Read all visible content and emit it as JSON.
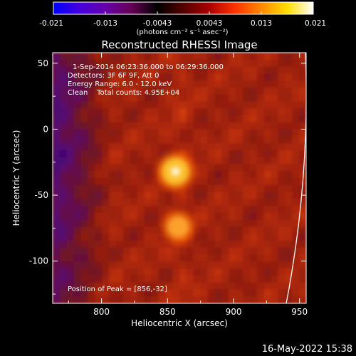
{
  "chart_data": {
    "type": "heatmap",
    "title": "Reconstructed RHESSI Image",
    "xlabel": "Heliocentric X (arcsec)",
    "ylabel": "Heliocentric Y (arcsec)",
    "xlim": [
      763,
      955
    ],
    "ylim": [
      -132,
      58
    ],
    "x_ticks": [
      800,
      850,
      900,
      950
    ],
    "y_ticks": [
      50,
      0,
      -50,
      -100
    ],
    "annotations": {
      "time": "1-Sep-2014 06:23:36.000 to 06:29:36.000",
      "detectors": "Detectors: 3F 6F 9F, Att 0",
      "energy": "Energy Range: 6.0 - 12.0 keV",
      "clean": "Clean    Total counts: 4.95E+04",
      "peak": "Position of Peak = [856,-32]"
    },
    "sources": [
      {
        "x": 856,
        "y": -32,
        "relative_intensity": 1.0
      },
      {
        "x": 858,
        "y": -74,
        "relative_intensity": 0.7
      }
    ],
    "limb_x_range": [
      941,
      955
    ],
    "colorbar": {
      "ticks": [
        "-0.021",
        "-0.013",
        "-0.0043",
        "0.0043",
        "0.013",
        "0.021"
      ],
      "min": -0.021,
      "max": 0.021,
      "unit": "(photons cm⁻² s⁻¹ asec⁻²)",
      "colormap": [
        "#0000ff",
        "#4400dd",
        "#6600aa",
        "#660055",
        "#000000",
        "#550000",
        "#aa0000",
        "#ff3300",
        "#ff8800",
        "#ffdd00",
        "#ffffff"
      ]
    }
  },
  "footer": {
    "date": "16-May-2022 15:38"
  }
}
